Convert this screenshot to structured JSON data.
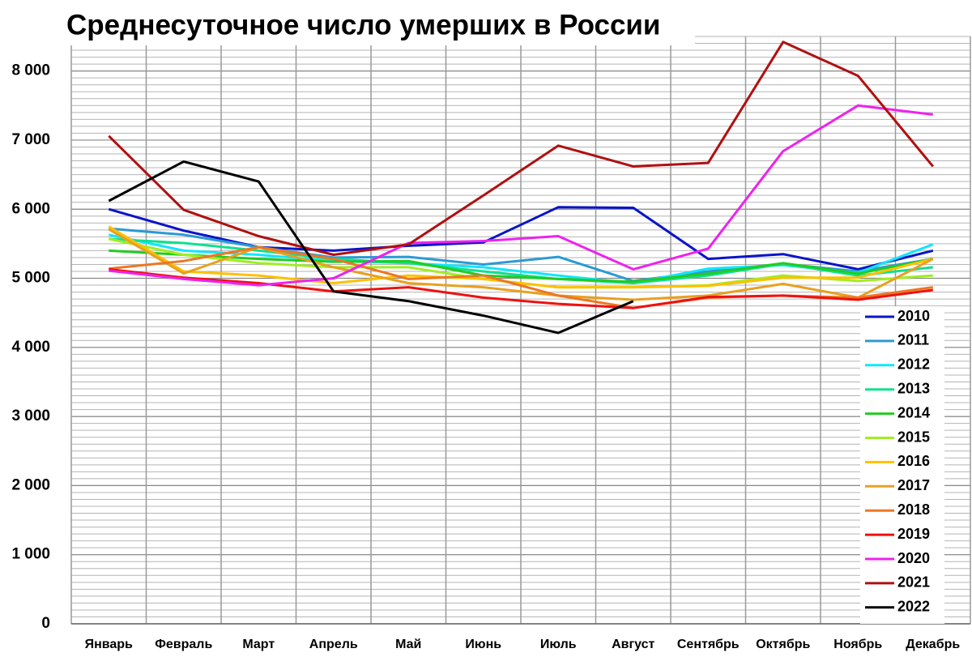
{
  "chart_data": {
    "type": "line",
    "title": "Среднесуточное число умерших в России",
    "categories": [
      "Январь",
      "Февраль",
      "Март",
      "Апрель",
      "Май",
      "Июнь",
      "Июль",
      "Август",
      "Сентябрь",
      "Октябрь",
      "Ноябрь",
      "Декабрь"
    ],
    "ylim": [
      0,
      8500
    ],
    "yticks": [
      0,
      {
        "value": 1000,
        "label": "1 000"
      },
      {
        "value": 2000,
        "label": "2 000"
      },
      {
        "value": 3000,
        "label": "3 000"
      },
      {
        "value": 4000,
        "label": "4 000"
      },
      {
        "value": 5000,
        "label": "5 000"
      },
      {
        "value": 6000,
        "label": "6 000"
      },
      {
        "value": 7000,
        "label": "7 000"
      },
      {
        "value": 8000,
        "label": "8 000"
      }
    ],
    "grid": true,
    "minor_grid_step": 100,
    "legend": "lower right",
    "series": [
      {
        "name": "2010",
        "color": "#0a14c8",
        "values": [
          6000,
          5690,
          5450,
          5400,
          5470,
          5520,
          6030,
          6020,
          5280,
          5350,
          5130,
          5400
        ]
      },
      {
        "name": "2011",
        "color": "#2a9ad6",
        "values": [
          5720,
          5630,
          5450,
          5300,
          5310,
          5200,
          5310,
          4960,
          5100,
          5210,
          5100,
          5280
        ]
      },
      {
        "name": "2012",
        "color": "#10e6ff",
        "values": [
          5630,
          5400,
          5340,
          5250,
          5220,
          5160,
          5040,
          4930,
          5140,
          5190,
          5080,
          5490
        ]
      },
      {
        "name": "2013",
        "color": "#10e090",
        "values": [
          5570,
          5510,
          5400,
          5280,
          5220,
          5100,
          4990,
          4930,
          5040,
          5210,
          5040,
          5160
        ]
      },
      {
        "name": "2014",
        "color": "#22cc22",
        "values": [
          5400,
          5340,
          5280,
          5240,
          5250,
          5040,
          4990,
          4950,
          5070,
          5220,
          5070,
          5280
        ]
      },
      {
        "name": "2015",
        "color": "#a0ee22",
        "values": [
          5570,
          5340,
          5220,
          5160,
          5160,
          4990,
          4870,
          4870,
          4900,
          5040,
          4960,
          5040
        ]
      },
      {
        "name": "2016",
        "color": "#ffc000",
        "values": [
          5750,
          5100,
          5040,
          4930,
          5040,
          4990,
          4870,
          4870,
          4890,
          5010,
          5010,
          5280
        ]
      },
      {
        "name": "2017",
        "color": "#e8a020",
        "values": [
          5710,
          5070,
          5450,
          5160,
          4930,
          4870,
          4750,
          4690,
          4750,
          4920,
          4720,
          5280
        ]
      },
      {
        "name": "2018",
        "color": "#ee7722",
        "values": [
          5140,
          5250,
          5450,
          5280,
          4990,
          5040,
          4750,
          4570,
          4720,
          4750,
          4720,
          4870
        ]
      },
      {
        "name": "2019",
        "color": "#ee1111",
        "values": [
          5130,
          5010,
          4930,
          4810,
          4870,
          4720,
          4630,
          4570,
          4730,
          4750,
          4690,
          4830
        ]
      },
      {
        "name": "2020",
        "color": "#ee22ee",
        "values": [
          5110,
          4990,
          4900,
          5000,
          5510,
          5540,
          5610,
          5130,
          5430,
          6840,
          7500,
          7370
        ]
      },
      {
        "name": "2021",
        "color": "#b01010",
        "values": [
          7060,
          5990,
          5610,
          5340,
          5490,
          6200,
          6920,
          6620,
          6670,
          8420,
          7930,
          6620
        ]
      },
      {
        "name": "2022",
        "color": "#000000",
        "values": [
          6120,
          6690,
          6400,
          4810,
          4670,
          4460,
          4210,
          4670,
          null,
          null,
          null,
          null
        ]
      }
    ]
  }
}
